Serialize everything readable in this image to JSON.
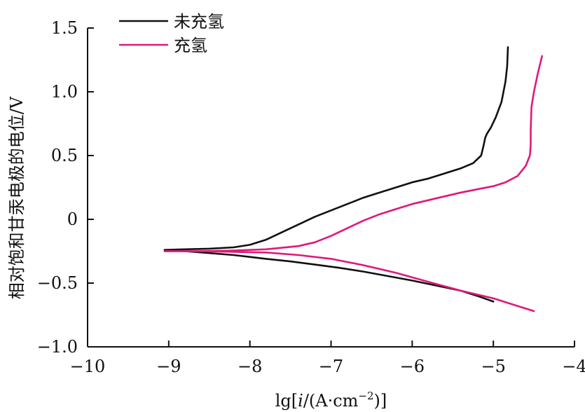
{
  "chart_data": {
    "type": "line",
    "title": "",
    "xlabel": "lg[i/(A·cm⁻²)]",
    "xlabel_parts": {
      "prefix": "lg[",
      "italic": "i",
      "middle": "/(A·cm",
      "superscript": "−2",
      "suffix": ")]"
    },
    "ylabel": "相对饱和甘汞电极的电位/V",
    "xlim": [
      -10,
      -4
    ],
    "ylim": [
      -1.0,
      1.5
    ],
    "xticks": [
      -10,
      -9,
      -8,
      -7,
      -6,
      -5,
      -4
    ],
    "xtick_labels": [
      "−10",
      "−9",
      "−8",
      "−7",
      "−6",
      "−5",
      "−4"
    ],
    "yticks": [
      -1.0,
      -0.5,
      0,
      0.5,
      1.0,
      1.5
    ],
    "ytick_labels": [
      "−1.0",
      "−0.5",
      "0",
      "0.5",
      "1.0",
      "1.5"
    ],
    "grid": false,
    "legend_position": "top-left",
    "series": [
      {
        "name": "未充氢",
        "color": "#111111",
        "branches": [
          {
            "x": [
              -9.05,
              -8.8,
              -8.5,
              -8.2,
              -8.0,
              -7.8,
              -7.6,
              -7.4,
              -7.2,
              -7.0,
              -6.8,
              -6.6,
              -6.4,
              -6.2,
              -6.0,
              -5.8,
              -5.6,
              -5.4,
              -5.25,
              -5.15,
              -5.12,
              -5.1,
              -5.08,
              -5.03,
              -4.97,
              -4.9,
              -4.85,
              -4.83,
              -4.82
            ],
            "y": [
              -0.24,
              -0.235,
              -0.23,
              -0.22,
              -0.2,
              -0.16,
              -0.1,
              -0.04,
              0.02,
              0.07,
              0.12,
              0.17,
              0.21,
              0.25,
              0.29,
              0.32,
              0.36,
              0.4,
              0.44,
              0.5,
              0.58,
              0.64,
              0.67,
              0.72,
              0.8,
              0.92,
              1.08,
              1.2,
              1.35
            ]
          },
          {
            "x": [
              -9.05,
              -8.8,
              -8.5,
              -8.2,
              -8.0,
              -7.8,
              -7.5,
              -7.2,
              -6.9,
              -6.6,
              -6.3,
              -6.0,
              -5.7,
              -5.4,
              -5.2,
              -5.0
            ],
            "y": [
              -0.24,
              -0.25,
              -0.265,
              -0.28,
              -0.295,
              -0.31,
              -0.33,
              -0.355,
              -0.38,
              -0.41,
              -0.445,
              -0.48,
              -0.52,
              -0.56,
              -0.6,
              -0.645
            ]
          }
        ]
      },
      {
        "name": "充氢",
        "color": "#e0187a",
        "branches": [
          {
            "x": [
              -9.05,
              -8.6,
              -8.2,
              -7.8,
              -7.4,
              -7.2,
              -7.0,
              -6.8,
              -6.6,
              -6.4,
              -6.2,
              -6.0,
              -5.8,
              -5.6,
              -5.4,
              -5.2,
              -5.0,
              -4.85,
              -4.7,
              -4.6,
              -4.55,
              -4.54,
              -4.54,
              -4.53,
              -4.5,
              -4.45,
              -4.4
            ],
            "y": [
              -0.25,
              -0.25,
              -0.245,
              -0.235,
              -0.21,
              -0.18,
              -0.13,
              -0.07,
              -0.01,
              0.04,
              0.08,
              0.12,
              0.15,
              0.18,
              0.21,
              0.235,
              0.26,
              0.29,
              0.34,
              0.42,
              0.5,
              0.58,
              0.7,
              0.88,
              1.0,
              1.15,
              1.28
            ]
          },
          {
            "x": [
              -9.05,
              -8.6,
              -8.2,
              -7.8,
              -7.4,
              -7.0,
              -6.6,
              -6.2,
              -5.8,
              -5.4,
              -5.0,
              -4.7,
              -4.5
            ],
            "y": [
              -0.25,
              -0.25,
              -0.255,
              -0.26,
              -0.28,
              -0.31,
              -0.36,
              -0.42,
              -0.49,
              -0.56,
              -0.62,
              -0.68,
              -0.72
            ]
          }
        ]
      }
    ]
  }
}
